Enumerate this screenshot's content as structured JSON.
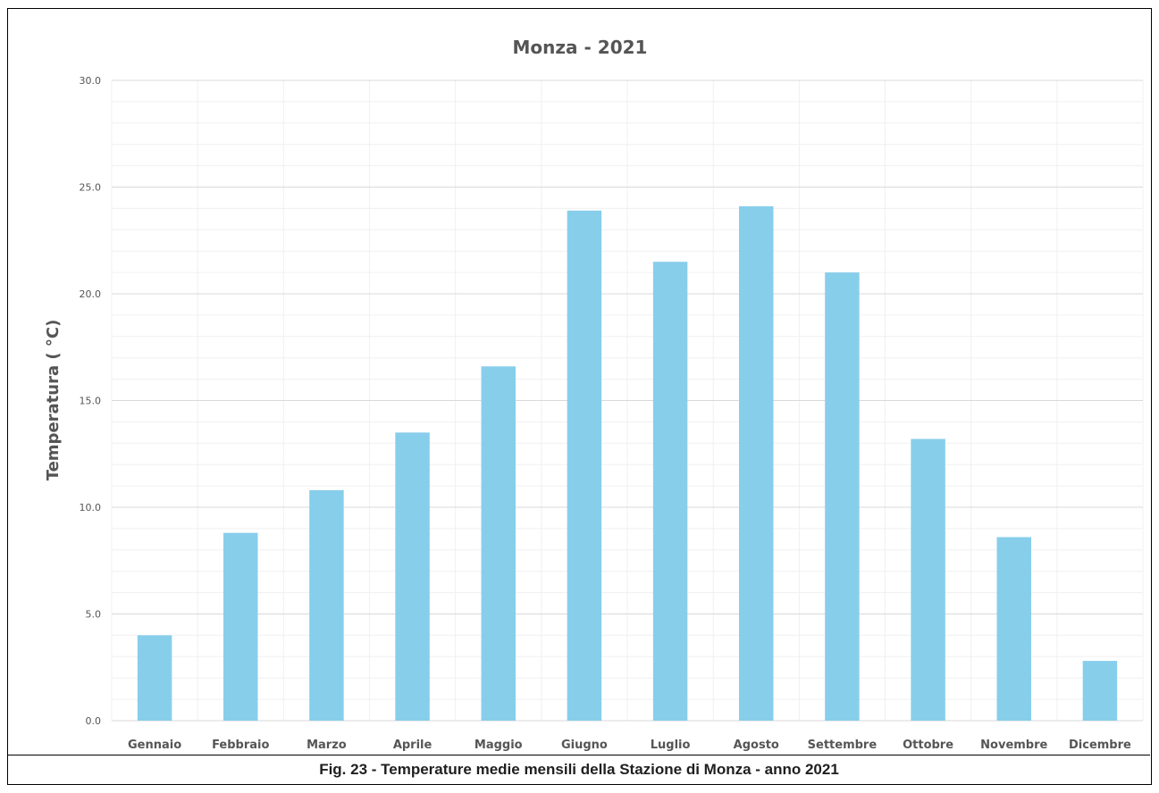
{
  "caption": "Fig. 23 - Temperature medie mensili della Stazione di Monza - anno 2021",
  "colors": {
    "bar": "#87ceeb",
    "grid_major": "#d9d9d9",
    "grid_minor": "#f0f0f0",
    "text": "#555555"
  },
  "chart_data": {
    "type": "bar",
    "title": "Monza - 2021",
    "xlabel": "",
    "ylabel": "Temperatura ( °C)",
    "ylim": [
      0,
      30
    ],
    "yticks": [
      "0.0",
      "5.0",
      "10.0",
      "15.0",
      "20.0",
      "25.0",
      "30.0"
    ],
    "grid": true,
    "categories": [
      "Gennaio",
      "Febbraio",
      "Marzo",
      "Aprile",
      "Maggio",
      "Giugno",
      "Luglio",
      "Agosto",
      "Settembre",
      "Ottobre",
      "Novembre",
      "Dicembre"
    ],
    "values": [
      4.0,
      8.8,
      10.8,
      13.5,
      16.6,
      23.9,
      21.5,
      24.1,
      21.0,
      13.2,
      8.6,
      2.8
    ]
  }
}
